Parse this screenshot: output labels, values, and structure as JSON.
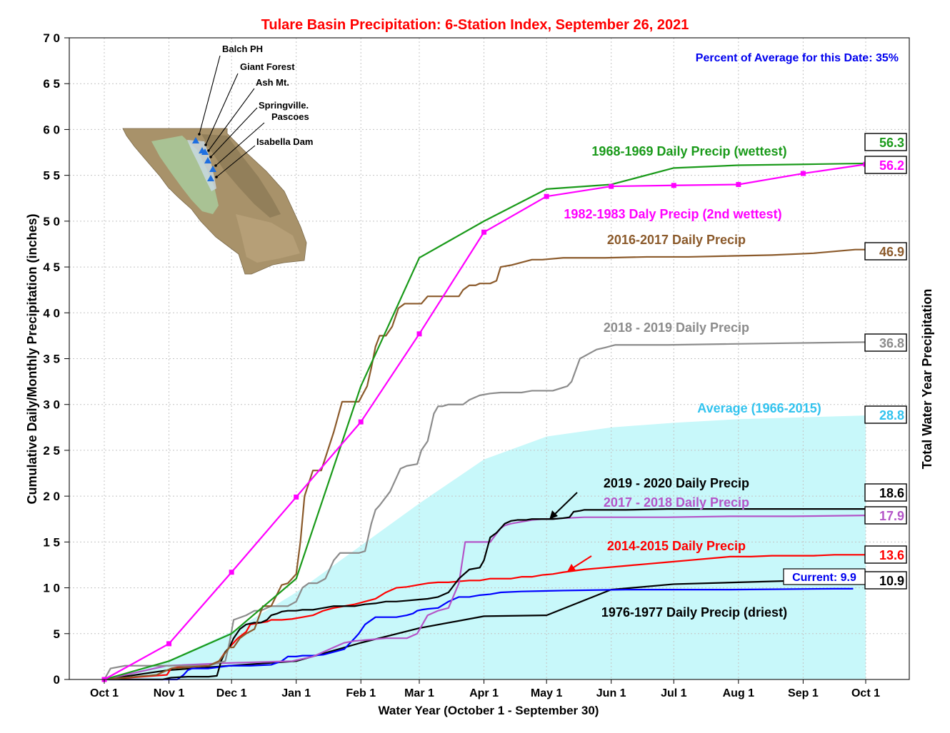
{
  "chart_data": {
    "type": "line",
    "title": "Tulare Basin Precipitation: 6-Station Index, September 26, 2021",
    "subtitle": "Percent of Average for this Date: 35%",
    "xlabel": "Water Year (October 1 - September 30)",
    "ylabel": "Cumulative Daily/Monthly Precipitation (inches)",
    "ylabel_right": "Total Water Year Precipitation",
    "ylim": [
      0,
      70
    ],
    "xlim": [
      0,
      365
    ],
    "grid": true,
    "x_ticks": [
      {
        "label": "Oct 1",
        "x": 0
      },
      {
        "label": "Nov 1",
        "x": 31
      },
      {
        "label": "Dec 1",
        "x": 61
      },
      {
        "label": "Jan 1",
        "x": 92
      },
      {
        "label": "Feb 1",
        "x": 123
      },
      {
        "label": "Mar 1",
        "x": 151
      },
      {
        "label": "Apr 1",
        "x": 182
      },
      {
        "label": "May 1",
        "x": 212
      },
      {
        "label": "Jun 1",
        "x": 243
      },
      {
        "label": "Jul 1",
        "x": 273
      },
      {
        "label": "Aug 1",
        "x": 304
      },
      {
        "label": "Sep 1",
        "x": 335
      },
      {
        "label": "Oct 1",
        "x": 365
      }
    ],
    "y_ticks": [
      "0",
      "5",
      "10",
      "15",
      "20",
      "25",
      "30",
      "35",
      "40",
      "45",
      "50",
      "55",
      "60",
      "65",
      "70"
    ],
    "y_tick_values": [
      0,
      5,
      10,
      15,
      20,
      25,
      30,
      35,
      40,
      45,
      50,
      55,
      60,
      65,
      70
    ],
    "average": {
      "name": "Average (1966-2015)",
      "color": "#c8f8fa",
      "label_color": "#33c3ee",
      "total": "28.8",
      "x": [
        0,
        31,
        61,
        92,
        123,
        151,
        182,
        212,
        243,
        273,
        304,
        335,
        365
      ],
      "y": [
        0,
        2.1,
        5.2,
        9.5,
        14.6,
        19.2,
        24.0,
        26.5,
        27.5,
        28.0,
        28.4,
        28.6,
        28.8
      ]
    },
    "series": [
      {
        "name": "1968-1969 Daily Precip (wettest)",
        "color": "#1a9a1a",
        "total": "56.3",
        "markers": false,
        "x": [
          0,
          31,
          61,
          92,
          123,
          151,
          182,
          212,
          243,
          273,
          304,
          335,
          365
        ],
        "y": [
          0,
          2,
          5,
          11,
          32,
          46,
          50,
          53.5,
          54,
          55.8,
          56.1,
          56.2,
          56.3
        ]
      },
      {
        "name": "1982-1983 Daly Precip (2nd wettest)",
        "color": "#ff00ff",
        "total": "56.2",
        "markers": true,
        "x": [
          0,
          31,
          61,
          92,
          123,
          151,
          182,
          212,
          243,
          273,
          304,
          335,
          365
        ],
        "y": [
          0,
          3.9,
          11.7,
          19.9,
          28.1,
          37.7,
          48.8,
          52.7,
          53.8,
          53.9,
          54.0,
          55.2,
          56.2
        ]
      },
      {
        "name": "2016-2017 Daily Precip",
        "color": "#8b5a2b",
        "total": "46.9",
        "markers": false,
        "x": [
          0,
          25,
          32,
          50,
          55,
          60,
          62,
          65,
          68,
          72,
          76,
          80,
          85,
          88,
          90,
          92,
          94,
          96,
          100,
          104,
          110,
          114,
          118,
          122,
          126,
          128,
          130,
          132,
          135,
          138,
          141,
          144,
          148,
          152,
          155,
          158,
          160,
          165,
          170,
          172,
          175,
          178,
          180,
          185,
          188,
          190,
          195,
          200,
          205,
          210,
          220,
          240,
          260,
          280,
          300,
          320,
          340,
          355,
          360,
          365
        ],
        "y": [
          0,
          0.5,
          1.2,
          1.5,
          2,
          3.5,
          3.5,
          4.5,
          5,
          5.5,
          8,
          8,
          10.3,
          10.5,
          11,
          11.5,
          15,
          20,
          22.8,
          22.8,
          27,
          30.3,
          30.3,
          30.3,
          32,
          34,
          36.3,
          37.5,
          37.5,
          38.5,
          40.5,
          41,
          41,
          41,
          41.8,
          41.8,
          41.8,
          41.8,
          41.8,
          42.5,
          43,
          43,
          43.2,
          43.2,
          43.5,
          45,
          45.2,
          45.5,
          45.8,
          45.8,
          46,
          46,
          46.1,
          46.1,
          46.2,
          46.3,
          46.5,
          46.8,
          46.9,
          46.9
        ]
      },
      {
        "name": "2018 - 2019 Daily Precip",
        "color": "#8c8c8c",
        "total": "36.8",
        "markers": false,
        "x": [
          0,
          3,
          10,
          20,
          35,
          50,
          58,
          60,
          62,
          68,
          72,
          75,
          80,
          85,
          88,
          92,
          95,
          98,
          102,
          106,
          110,
          113,
          118,
          122,
          125,
          128,
          130,
          132,
          137,
          140,
          142,
          145,
          150,
          152,
          155,
          158,
          160,
          162,
          165,
          172,
          175,
          180,
          185,
          190,
          195,
          200,
          205,
          210,
          215,
          222,
          224,
          228,
          232,
          236,
          240,
          245,
          250,
          270,
          300,
          330,
          365
        ],
        "y": [
          0,
          1.2,
          1.5,
          1.5,
          1.5,
          1.5,
          2,
          4,
          6.5,
          7,
          7.5,
          7.5,
          8,
          8,
          8,
          8.5,
          10,
          10.5,
          10.5,
          11,
          13,
          13.8,
          13.8,
          13.8,
          14,
          17,
          18.5,
          19,
          20.5,
          22,
          23,
          23.3,
          23.5,
          25,
          26,
          29,
          29.8,
          29.8,
          30,
          30,
          30.5,
          31,
          31.2,
          31.3,
          31.3,
          31.3,
          31.5,
          31.5,
          31.5,
          32,
          32.5,
          35,
          35.5,
          36,
          36.2,
          36.5,
          36.5,
          36.5,
          36.6,
          36.7,
          36.8
        ]
      },
      {
        "name": "2017 - 2018 Daily Precip",
        "color": "#b455c8",
        "total": "17.9",
        "markers": false,
        "x": [
          0,
          30,
          60,
          90,
          100,
          105,
          110,
          115,
          120,
          125,
          130,
          135,
          140,
          145,
          150,
          155,
          160,
          165,
          170,
          173,
          176,
          180,
          185,
          190,
          192,
          195,
          200,
          205,
          210,
          215,
          220,
          230,
          250,
          270,
          300,
          330,
          365
        ],
        "y": [
          0,
          1.5,
          1.8,
          2,
          2.5,
          3,
          3.5,
          4,
          4.2,
          4.3,
          4.4,
          4.5,
          4.5,
          4.5,
          5,
          7,
          7.5,
          7.8,
          10.5,
          15,
          15,
          15,
          15,
          16.5,
          16.8,
          17,
          17.2,
          17.4,
          17.5,
          17.5,
          17.6,
          17.7,
          17.7,
          17.7,
          17.8,
          17.8,
          17.9
        ]
      },
      {
        "name": "2019 - 2020 Daily Precip",
        "color": "#000000",
        "total": "18.6",
        "markers": false,
        "x": [
          0,
          28,
          32,
          40,
          45,
          50,
          54,
          56,
          58,
          60,
          62,
          65,
          68,
          72,
          75,
          78,
          80,
          83,
          85,
          88,
          92,
          95,
          100,
          105,
          110,
          115,
          120,
          125,
          130,
          135,
          140,
          145,
          150,
          155,
          160,
          165,
          170,
          175,
          180,
          182,
          185,
          188,
          190,
          192,
          195,
          198,
          202,
          205,
          210,
          215,
          220,
          223,
          225,
          228,
          230,
          235,
          240,
          250,
          270,
          300,
          330,
          365
        ],
        "y": [
          0,
          0,
          0.2,
          0.3,
          0.3,
          0.3,
          0.4,
          2,
          3,
          3.5,
          4.5,
          5.5,
          6,
          6.2,
          6.2,
          6.5,
          7,
          7.2,
          7.4,
          7.5,
          7.5,
          7.6,
          7.6,
          7.8,
          8,
          8,
          8,
          8.2,
          8.3,
          8.5,
          8.5,
          8.6,
          8.7,
          8.8,
          9,
          9.5,
          11,
          12,
          12.2,
          13,
          15.5,
          16,
          16.5,
          17,
          17.3,
          17.4,
          17.4,
          17.5,
          17.5,
          17.5,
          17.6,
          17.7,
          18.3,
          18.4,
          18.5,
          18.5,
          18.5,
          18.5,
          18.6,
          18.6,
          18.6,
          18.6
        ]
      },
      {
        "name": "2014-2015 Daily Precip",
        "color": "#ff0000",
        "total": "13.6",
        "markers": false,
        "x": [
          0,
          30,
          32,
          40,
          45,
          50,
          55,
          58,
          60,
          62,
          64,
          68,
          70,
          75,
          78,
          80,
          85,
          90,
          95,
          100,
          105,
          110,
          115,
          120,
          125,
          130,
          135,
          140,
          145,
          150,
          155,
          160,
          165,
          170,
          175,
          180,
          185,
          190,
          195,
          200,
          205,
          210,
          215,
          220,
          230,
          240,
          250,
          260,
          270,
          280,
          290,
          300,
          310,
          320,
          330,
          340,
          350,
          365
        ],
        "y": [
          0,
          0.5,
          1.2,
          1.5,
          1.5,
          1.5,
          2,
          3,
          3.5,
          4,
          4.5,
          5.2,
          6,
          6.2,
          6.3,
          6.5,
          6.5,
          6.6,
          6.8,
          7,
          7.5,
          7.8,
          8,
          8.2,
          8.5,
          8.8,
          9.5,
          10,
          10.1,
          10.3,
          10.5,
          10.6,
          10.6,
          10.7,
          10.8,
          10.8,
          11,
          11,
          11,
          11.2,
          11.2,
          11.4,
          11.5,
          11.7,
          12,
          12.2,
          12.4,
          12.6,
          12.8,
          13,
          13.2,
          13.4,
          13.4,
          13.5,
          13.5,
          13.5,
          13.6,
          13.6
        ]
      },
      {
        "name": "1976-1977 Daily Precip (driest)",
        "color": "#000000",
        "total": "10.9",
        "markers": false,
        "x": [
          0,
          30,
          60,
          92,
          123,
          151,
          182,
          212,
          243,
          273,
          304,
          335,
          365
        ],
        "y": [
          0,
          1,
          1.5,
          2,
          4,
          5.6,
          6.9,
          7,
          9.8,
          10.4,
          10.6,
          10.8,
          10.9
        ]
      },
      {
        "name": "Current",
        "color": "#0000ff",
        "total": "9.9",
        "markers": false,
        "x": [
          0,
          30,
          35,
          38,
          40,
          42,
          50,
          60,
          70,
          80,
          85,
          88,
          90,
          92,
          95,
          98,
          100,
          105,
          110,
          115,
          120,
          122,
          125,
          130,
          135,
          140,
          145,
          148,
          150,
          152,
          155,
          160,
          165,
          170,
          175,
          180,
          185,
          190,
          200,
          220,
          250,
          300,
          350,
          359
        ],
        "y": [
          0,
          0,
          0,
          0.5,
          1,
          1.2,
          1.2,
          1.5,
          1.5,
          1.6,
          2,
          2.5,
          2.5,
          2.5,
          2.6,
          2.6,
          2.6,
          2.7,
          3,
          3.3,
          4.5,
          5,
          6,
          6.8,
          6.8,
          6.8,
          7,
          7.2,
          7.5,
          7.6,
          7.7,
          7.8,
          8.5,
          9,
          9,
          9.2,
          9.3,
          9.5,
          9.6,
          9.7,
          9.8,
          9.8,
          9.9,
          9.9
        ]
      }
    ],
    "current_label": "Current: 9.9",
    "map": {
      "stations": [
        "Balch PH",
        "Giant Forest",
        "Ash Mt.",
        "Springville.",
        "Pascoes",
        "Isabella Dam"
      ],
      "land_color": "#a8926a",
      "valley_color": "#a9c899",
      "marker_color": "#1e6fe0"
    }
  }
}
